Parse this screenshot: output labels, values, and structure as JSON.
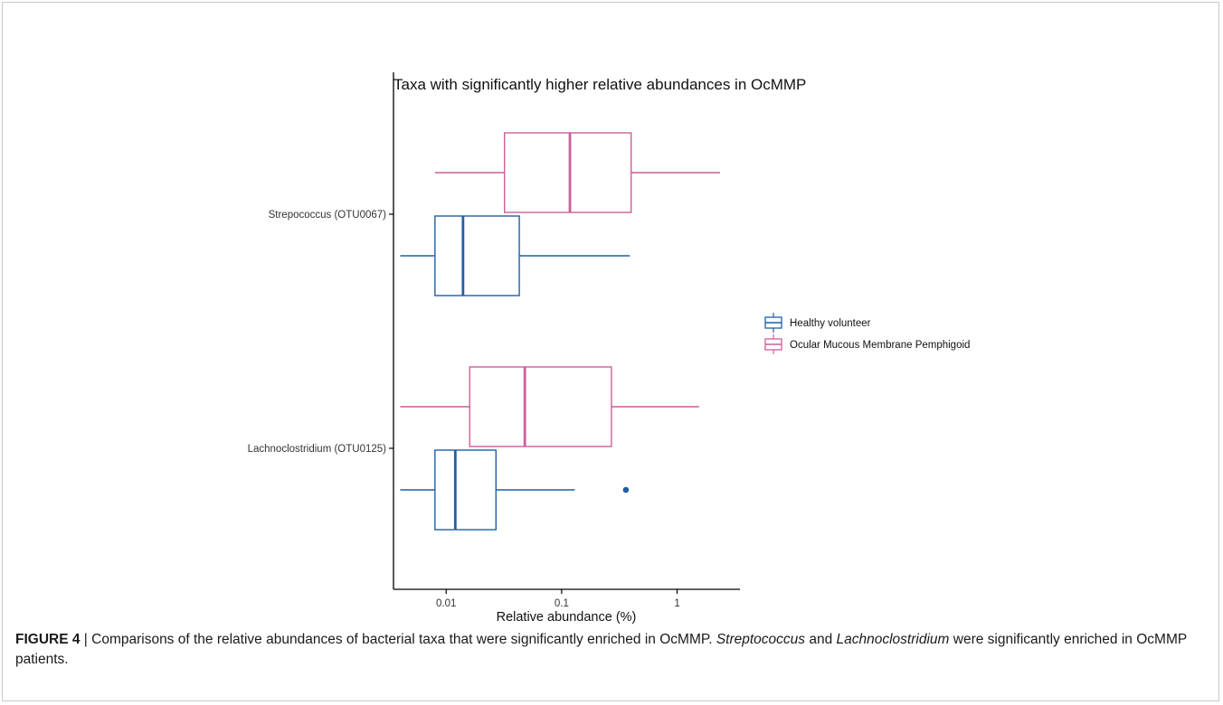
{
  "chart_data": {
    "type": "boxplot",
    "orientation": "horizontal",
    "title": "Taxa with significantly higher relative abundances in OcMMP",
    "xlabel": "Relative abundance (%)",
    "ylabel": "",
    "x_scale": "log10",
    "xlim": [
      0.0035,
      3.5
    ],
    "x_ticks": [
      0.01,
      0.1,
      1
    ],
    "x_tick_labels": [
      "0.01",
      "0.1",
      "1"
    ],
    "categories": [
      "Strepococcus (OTU0067)",
      "Lachnoclostridium (OTU0125)"
    ],
    "grid": false,
    "legend_position": "right",
    "series": [
      {
        "name": "Healthy volunteer",
        "color": "#1f5fa6",
        "boxes": [
          {
            "category": "Strepococcus (OTU0067)",
            "whisker_low": 0.004,
            "q1": 0.008,
            "median": 0.014,
            "q3": 0.043,
            "whisker_high": 0.39,
            "outliers": []
          },
          {
            "category": "Lachnoclostridium (OTU0125)",
            "whisker_low": 0.004,
            "q1": 0.008,
            "median": 0.012,
            "q3": 0.027,
            "whisker_high": 0.13,
            "outliers": [
              0.36
            ]
          }
        ]
      },
      {
        "name": "Ocular Mucous Membrane Pemphigoid",
        "color": "#cc5f9a",
        "boxes": [
          {
            "category": "Strepococcus (OTU0067)",
            "whisker_low": 0.008,
            "q1": 0.032,
            "median": 0.118,
            "q3": 0.4,
            "whisker_high": 2.35,
            "outliers": []
          },
          {
            "category": "Lachnoclostridium (OTU0125)",
            "whisker_low": 0.004,
            "q1": 0.016,
            "median": 0.048,
            "q3": 0.27,
            "whisker_high": 1.55,
            "outliers": []
          }
        ]
      }
    ]
  },
  "caption": {
    "label": "FIGURE 4",
    "separator": " | ",
    "part1": "Comparisons of the relative abundances of bacterial taxa that were significantly enriched in OcMMP. ",
    "taxon1": "Streptococcus",
    "and": " and ",
    "taxon2": "Lachnoclostridium",
    "part2": " were significantly enriched in OcMMP patients."
  }
}
